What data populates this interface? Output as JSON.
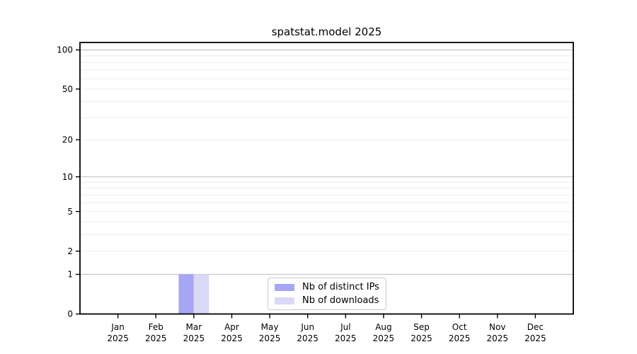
{
  "chart_data": {
    "type": "bar",
    "title": "spatstat.model 2025",
    "categories": [
      "Jan",
      "Feb",
      "Mar",
      "Apr",
      "May",
      "Jun",
      "Jul",
      "Aug",
      "Sep",
      "Oct",
      "Nov",
      "Dec"
    ],
    "year_label": "2025",
    "series": [
      {
        "name": "Nb of distinct IPs",
        "color": "#a6a6f7",
        "values": [
          0,
          0,
          1,
          0,
          0,
          0,
          0,
          0,
          0,
          0,
          0,
          0
        ]
      },
      {
        "name": "Nb of downloads",
        "color": "#d9d9f7",
        "values": [
          0,
          0,
          1,
          0,
          0,
          0,
          0,
          0,
          0,
          0,
          0,
          0
        ]
      }
    ],
    "y_axis": {
      "scale": "log1p",
      "tick_values": [
        0,
        1,
        2,
        5,
        10,
        20,
        50,
        100
      ],
      "tick_labels": [
        "0",
        "1",
        "2",
        "5",
        "10",
        "20",
        "50",
        "100"
      ],
      "major_gridlines": [
        1,
        10,
        100
      ],
      "minor_gridlines": [
        2,
        3,
        4,
        5,
        6,
        7,
        8,
        9,
        20,
        30,
        40,
        50,
        60,
        70,
        80,
        90
      ],
      "ylim": [
        0,
        114
      ]
    },
    "legend": {
      "position": "bottom-center-inside",
      "entries": [
        "Nb of distinct IPs",
        "Nb of downloads"
      ]
    },
    "colors": {
      "background": "#ffffff",
      "axis": "#000000",
      "text": "#000000",
      "major_grid": "#c6c6c6",
      "minor_grid": "#ededed",
      "legend_border": "#c9c9c9"
    }
  }
}
